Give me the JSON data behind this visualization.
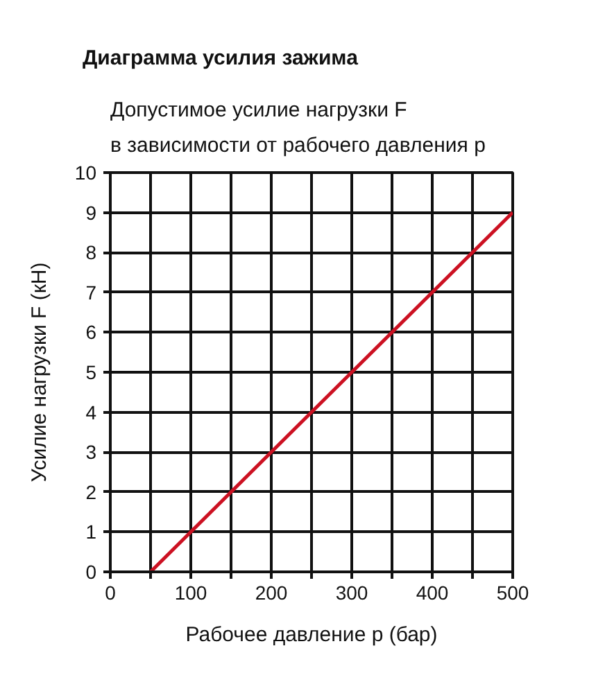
{
  "chart_data": {
    "type": "line",
    "title": "Диаграмма усилия зажима",
    "subtitle": "Допустимое усилие нагрузки F\nв зависимости от рабочего давления p",
    "xlabel": "Рабочее давление p (бар)",
    "ylabel": "Усилие нагрузки F (кН)",
    "x": [
      50,
      500
    ],
    "series": [
      {
        "color": "#cc1122",
        "values": [
          0,
          9
        ]
      }
    ],
    "xlim": [
      0,
      500
    ],
    "ylim": [
      0,
      10
    ],
    "xticks": [
      0,
      {
        "value": 50,
        "label": null
      },
      100,
      {
        "value": 150,
        "label": null
      },
      200,
      {
        "value": 250,
        "label": null
      },
      300,
      {
        "value": 350,
        "label": null
      },
      400,
      {
        "value": 450,
        "label": null
      },
      500
    ],
    "yticks": [
      0,
      1,
      2,
      3,
      4,
      5,
      6,
      7,
      8,
      9,
      10
    ],
    "grid": true,
    "line_style": "solid"
  }
}
